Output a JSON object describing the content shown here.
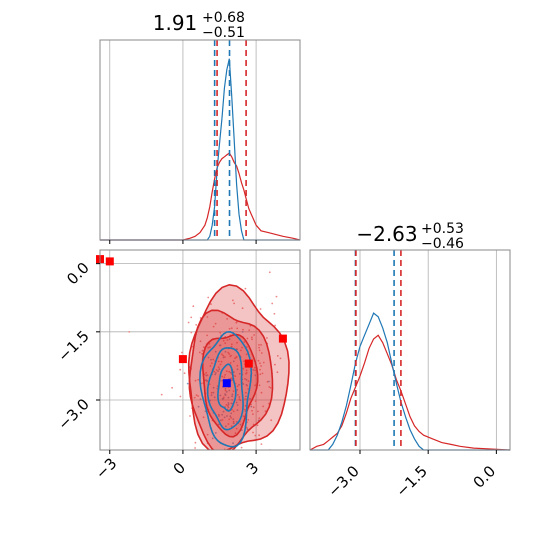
{
  "chart_data": {
    "type": "corner",
    "colors": {
      "series_1": "#1f77b4",
      "series_2": "#d62728",
      "truth": "#0000ff",
      "marker": "#ff0000"
    },
    "parameters": [
      {
        "title_main": "1.91",
        "title_plus": "+0.68",
        "title_minus": "−0.51",
        "range": [
          -3.4,
          4.8
        ],
        "median": 1.91,
        "lower": 1.4,
        "upper": 2.59,
        "blue_median": 1.91,
        "blue_lower": 1.3,
        "blue_upper": 2.1
      },
      {
        "title_main": "−2.63",
        "title_plus": "+0.53",
        "title_minus": "−0.46",
        "range": [
          -4.1,
          0.3
        ],
        "median": -2.63,
        "lower": -3.09,
        "upper": -2.1,
        "blue_median": -2.63,
        "blue_lower": -3.1,
        "blue_upper": -2.25
      }
    ],
    "x_ticks_param1": [
      {
        "value": -3,
        "label": "−3"
      },
      {
        "value": 0,
        "label": "0"
      },
      {
        "value": 3,
        "label": "3"
      }
    ],
    "y_ticks_param2": [
      {
        "value": 0.0,
        "label": "0.0"
      },
      {
        "value": -1.5,
        "label": "−1.5"
      },
      {
        "value": -3.0,
        "label": "−3.0"
      }
    ],
    "x_ticks_param2": [
      {
        "value": -3.0,
        "label": "−3.0"
      },
      {
        "value": -1.5,
        "label": "−1.5"
      },
      {
        "value": 0.0,
        "label": "0.0"
      }
    ],
    "hist1_red": [
      [
        -3.4,
        0
      ],
      [
        -2.0,
        0
      ],
      [
        0.0,
        0
      ],
      [
        0.3,
        0.01
      ],
      [
        0.5,
        0.02
      ],
      [
        0.7,
        0.04
      ],
      [
        0.9,
        0.08
      ],
      [
        1.0,
        0.12
      ],
      [
        1.1,
        0.18
      ],
      [
        1.2,
        0.26
      ],
      [
        1.3,
        0.33
      ],
      [
        1.4,
        0.39
      ],
      [
        1.5,
        0.42
      ],
      [
        1.6,
        0.44
      ],
      [
        1.7,
        0.45
      ],
      [
        1.8,
        0.46
      ],
      [
        1.9,
        0.47
      ],
      [
        2.0,
        0.45
      ],
      [
        2.1,
        0.42
      ],
      [
        2.2,
        0.4
      ],
      [
        2.3,
        0.36
      ],
      [
        2.4,
        0.31
      ],
      [
        2.5,
        0.27
      ],
      [
        2.6,
        0.22
      ],
      [
        2.7,
        0.17
      ],
      [
        2.8,
        0.14
      ],
      [
        2.9,
        0.11
      ],
      [
        3.0,
        0.08
      ],
      [
        3.2,
        0.05
      ],
      [
        3.5,
        0.04
      ],
      [
        3.8,
        0.03
      ],
      [
        4.1,
        0.02
      ],
      [
        4.5,
        0.01
      ],
      [
        4.8,
        0
      ]
    ],
    "hist1_blue": [
      [
        -3.4,
        0
      ],
      [
        1.0,
        0
      ],
      [
        1.1,
        0.02
      ],
      [
        1.2,
        0.08
      ],
      [
        1.3,
        0.18
      ],
      [
        1.4,
        0.38
      ],
      [
        1.5,
        0.52
      ],
      [
        1.6,
        0.66
      ],
      [
        1.7,
        0.82
      ],
      [
        1.8,
        0.92
      ],
      [
        1.9,
        0.98
      ],
      [
        2.0,
        0.78
      ],
      [
        2.1,
        0.55
      ],
      [
        2.2,
        0.3
      ],
      [
        2.3,
        0.14
      ],
      [
        2.4,
        0.05
      ],
      [
        2.5,
        0
      ],
      [
        4.8,
        0
      ]
    ],
    "hist2_red": [
      [
        -4.1,
        0
      ],
      [
        -3.95,
        0.02
      ],
      [
        -3.8,
        0.03
      ],
      [
        -3.7,
        0.05
      ],
      [
        -3.6,
        0.07
      ],
      [
        -3.5,
        0.09
      ],
      [
        -3.4,
        0.13
      ],
      [
        -3.3,
        0.2
      ],
      [
        -3.2,
        0.28
      ],
      [
        -3.1,
        0.34
      ],
      [
        -3.0,
        0.4
      ],
      [
        -2.9,
        0.47
      ],
      [
        -2.8,
        0.55
      ],
      [
        -2.7,
        0.6
      ],
      [
        -2.6,
        0.62
      ],
      [
        -2.5,
        0.58
      ],
      [
        -2.4,
        0.52
      ],
      [
        -2.3,
        0.46
      ],
      [
        -2.2,
        0.38
      ],
      [
        -2.1,
        0.32
      ],
      [
        -2.0,
        0.25
      ],
      [
        -1.9,
        0.18
      ],
      [
        -1.8,
        0.13
      ],
      [
        -1.7,
        0.1
      ],
      [
        -1.6,
        0.08
      ],
      [
        -1.4,
        0.06
      ],
      [
        -1.2,
        0.04
      ],
      [
        -1.0,
        0.03
      ],
      [
        -0.8,
        0.02
      ],
      [
        -0.5,
        0.01
      ],
      [
        0.3,
        0
      ]
    ],
    "hist2_blue": [
      [
        -4.1,
        0
      ],
      [
        -3.7,
        0
      ],
      [
        -3.6,
        0.03
      ],
      [
        -3.5,
        0.08
      ],
      [
        -3.4,
        0.15
      ],
      [
        -3.3,
        0.24
      ],
      [
        -3.2,
        0.35
      ],
      [
        -3.1,
        0.47
      ],
      [
        -3.0,
        0.56
      ],
      [
        -2.9,
        0.62
      ],
      [
        -2.8,
        0.68
      ],
      [
        -2.7,
        0.74
      ],
      [
        -2.6,
        0.72
      ],
      [
        -2.5,
        0.66
      ],
      [
        -2.4,
        0.58
      ],
      [
        -2.3,
        0.47
      ],
      [
        -2.2,
        0.36
      ],
      [
        -2.1,
        0.26
      ],
      [
        -2.0,
        0.18
      ],
      [
        -1.9,
        0.11
      ],
      [
        -1.8,
        0.06
      ],
      [
        -1.7,
        0.02
      ],
      [
        -1.6,
        0
      ],
      [
        0.3,
        0
      ]
    ],
    "truth_point": {
      "x": 1.8,
      "y": -2.63
    },
    "marker_points": [
      {
        "x": -3.4,
        "y": 0.1
      },
      {
        "x": -3.0,
        "y": 0.05
      },
      {
        "x": 0.0,
        "y": -2.1
      },
      {
        "x": 2.7,
        "y": -2.2
      },
      {
        "x": 4.1,
        "y": -1.65
      }
    ],
    "red_contours": [
      {
        "cx": 1.9,
        "cy": -2.6,
        "rx": 1.1,
        "ry": 1.1,
        "alpha": 0.25
      },
      {
        "cx": 1.9,
        "cy": -2.55,
        "rx": 1.7,
        "ry": 1.5,
        "alpha": 0.15
      },
      {
        "cx": 2.2,
        "cy": -2.4,
        "rx": 2.05,
        "ry": 1.75,
        "alpha": 0.1
      }
    ],
    "blue_contours": [
      {
        "cx": 1.8,
        "cy": -2.75,
        "rx": 0.35,
        "ry": 0.5
      },
      {
        "cx": 1.8,
        "cy": -2.75,
        "rx": 0.7,
        "ry": 0.9
      },
      {
        "cx": 1.8,
        "cy": -2.75,
        "rx": 1.0,
        "ry": 1.25
      }
    ]
  }
}
